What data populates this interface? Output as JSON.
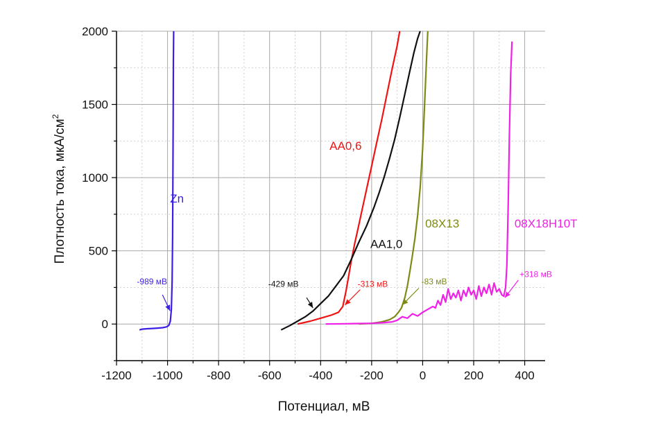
{
  "chart_data": {
    "type": "line",
    "xlabel": "Потенциал, мВ",
    "ylabel": "Плотность тока, мкА/см",
    "ylabel_sup": "2",
    "xlim": [
      -1200,
      480
    ],
    "ylim": [
      -250,
      2000
    ],
    "xticks": [
      -1200,
      -1000,
      -800,
      -600,
      -400,
      -200,
      0,
      200,
      400
    ],
    "yticks": [
      0,
      500,
      1000,
      1500,
      2000
    ],
    "grid": true,
    "series": [
      {
        "name": "Zn",
        "color": "#3a1ee6",
        "label_at": [
          -990,
          830
        ],
        "x": [
          -1110,
          -1100,
          -1080,
          -1060,
          -1040,
          -1020,
          -1005,
          -995,
          -989,
          -985,
          -982,
          -980,
          -979,
          -978,
          -977,
          -976
        ],
        "y": [
          -40,
          -35,
          -32,
          -30,
          -28,
          -25,
          -20,
          -10,
          20,
          100,
          300,
          600,
          1000,
          1400,
          1800,
          2000
        ]
      },
      {
        "name": "АА0,6",
        "color": "#ef1414",
        "label_at": [
          -365,
          1190
        ],
        "x": [
          -490,
          -440,
          -400,
          -360,
          -330,
          -313,
          -300,
          -290,
          -280,
          -265,
          -250,
          -235,
          -220,
          -200,
          -180,
          -160,
          -140,
          -120,
          -100,
          -90
        ],
        "y": [
          0,
          20,
          40,
          60,
          80,
          120,
          230,
          330,
          430,
          560,
          680,
          800,
          920,
          1080,
          1240,
          1400,
          1570,
          1740,
          1900,
          2000
        ]
      },
      {
        "name": "АА1,0",
        "color": "#111111",
        "label_at": [
          -205,
          520
        ],
        "x": [
          -555,
          -520,
          -490,
          -460,
          -429,
          -400,
          -370,
          -340,
          -310,
          -280,
          -250,
          -220,
          -190,
          -170,
          -150,
          -130,
          -110,
          -90,
          -70,
          -50,
          -35,
          -20,
          -10
        ],
        "y": [
          -40,
          -10,
          20,
          50,
          90,
          140,
          190,
          260,
          330,
          440,
          560,
          670,
          800,
          900,
          1010,
          1130,
          1260,
          1410,
          1570,
          1730,
          1850,
          1950,
          2000
        ]
      },
      {
        "name": "08Х13",
        "color": "#7e8a14",
        "label_at": [
          10,
          660
        ],
        "x": [
          -250,
          -200,
          -160,
          -130,
          -110,
          -95,
          -83,
          -70,
          -60,
          -50,
          -40,
          -30,
          -20,
          -10,
          0,
          5,
          10,
          15,
          20
        ],
        "y": [
          0,
          5,
          15,
          30,
          50,
          80,
          110,
          180,
          260,
          360,
          470,
          590,
          740,
          930,
          1200,
          1400,
          1600,
          1800,
          2000
        ]
      },
      {
        "name": "08Х18Н10Т",
        "color": "#f020e6",
        "label_at": [
          360,
          660
        ],
        "x": [
          -380,
          -300,
          -200,
          -150,
          -120,
          -100,
          -80,
          -60,
          -40,
          -20,
          0,
          20,
          40,
          50,
          60,
          70,
          80,
          90,
          100,
          110,
          120,
          130,
          140,
          150,
          160,
          170,
          180,
          190,
          200,
          210,
          220,
          230,
          240,
          250,
          260,
          270,
          280,
          290,
          300,
          310,
          318,
          325,
          330,
          335,
          340,
          345,
          350
        ],
        "y": [
          0,
          2,
          5,
          10,
          15,
          25,
          50,
          40,
          70,
          55,
          80,
          100,
          120,
          110,
          160,
          130,
          200,
          150,
          240,
          170,
          210,
          180,
          230,
          160,
          230,
          190,
          250,
          200,
          230,
          170,
          260,
          190,
          250,
          210,
          270,
          200,
          280,
          220,
          240,
          200,
          190,
          250,
          400,
          800,
          1300,
          1700,
          1930
        ]
      }
    ],
    "annotations": [
      {
        "text": "-989 мВ",
        "color": "#3a1ee6",
        "text_at": [
          -1120,
          270
        ],
        "arrow_from": [
          -1020,
          200
        ],
        "arrow_to": [
          -990,
          90
        ]
      },
      {
        "text": "-429 мВ",
        "color": "#111111",
        "text_at": [
          -605,
          255
        ],
        "arrow_from": [
          -455,
          180
        ],
        "arrow_to": [
          -430,
          110
        ]
      },
      {
        "text": "-313 мВ",
        "color": "#ef1414",
        "text_at": [
          -255,
          255
        ],
        "arrow_from": [
          -245,
          235
        ],
        "arrow_to": [
          -305,
          130
        ]
      },
      {
        "text": "-83 мВ",
        "color": "#7e8a14",
        "text_at": [
          -5,
          270
        ],
        "arrow_from": [
          -15,
          245
        ],
        "arrow_to": [
          -80,
          130
        ]
      },
      {
        "text": "+318 мВ",
        "color": "#f020e6",
        "text_at": [
          380,
          320
        ],
        "arrow_from": [
          375,
          300
        ],
        "arrow_to": [
          322,
          180
        ]
      }
    ]
  }
}
